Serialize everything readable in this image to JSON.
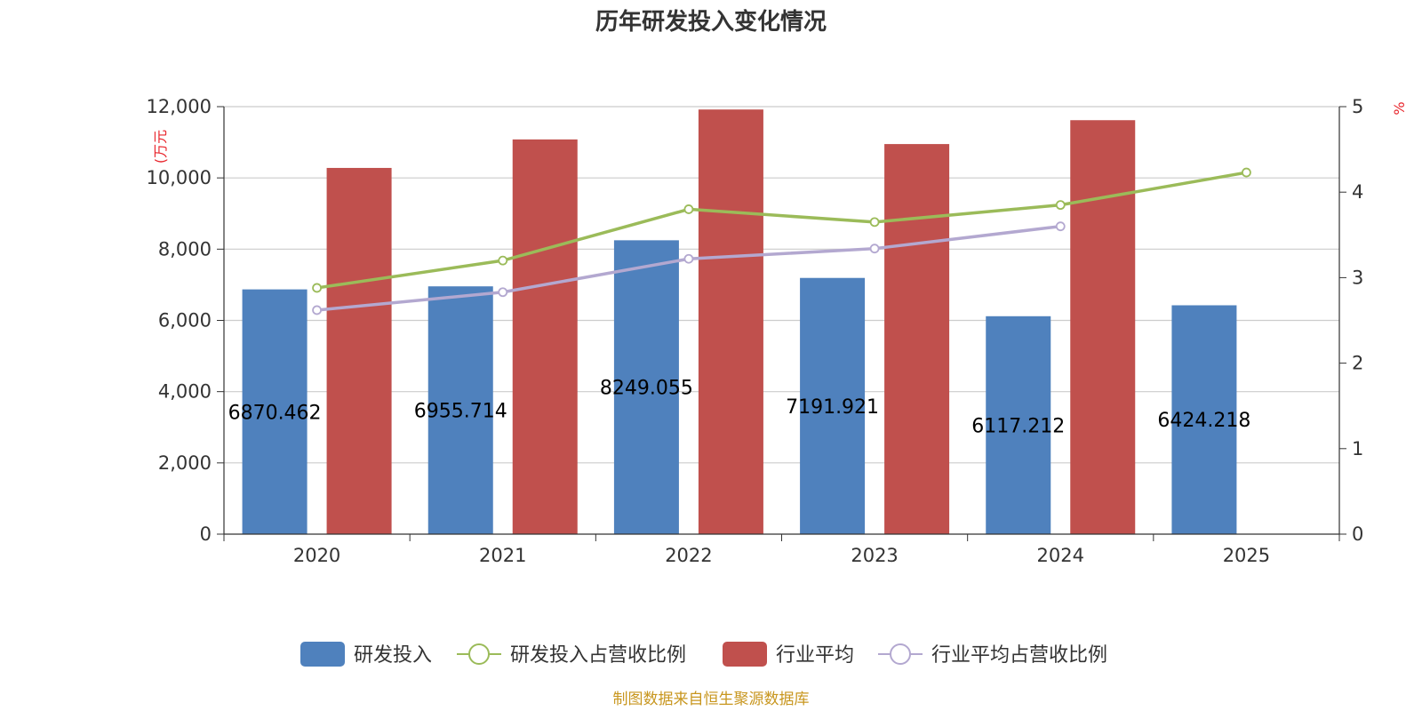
{
  "chart_data": {
    "type": "bar",
    "title": "历年研发投入变化情况",
    "categories": [
      "2020",
      "2021",
      "2022",
      "2023",
      "2024",
      "2025"
    ],
    "left_axis": {
      "unit_label": "(万元",
      "ylim": [
        0,
        12000
      ],
      "ticks": [
        0,
        2000,
        4000,
        6000,
        8000,
        10000,
        12000
      ],
      "tick_labels": [
        "0",
        "2,000",
        "4,000",
        "6,000",
        "8,000",
        "10,000",
        "12,000"
      ]
    },
    "right_axis": {
      "unit_label": "%",
      "ylim": [
        0,
        5
      ],
      "ticks": [
        0,
        1,
        2,
        3,
        4,
        5
      ],
      "tick_labels": [
        "0",
        "1",
        "2",
        "3",
        "4",
        "5"
      ]
    },
    "series": [
      {
        "name": "研发投入",
        "type": "bar",
        "axis": "left",
        "color": "#4f81bd",
        "values": [
          6870.462,
          6955.714,
          8249.055,
          7191.921,
          6117.212,
          6424.218
        ],
        "labels": [
          "6870.462",
          "6955.714",
          "8249.055",
          "7191.921",
          "6117.212",
          "6424.218"
        ]
      },
      {
        "name": "研发投入占营收比例",
        "type": "line",
        "axis": "right",
        "color": "#9bbb59",
        "values": [
          2.88,
          3.2,
          3.8,
          3.65,
          3.85,
          4.23
        ]
      },
      {
        "name": "行业平均",
        "type": "bar",
        "axis": "left",
        "color": "#c0504d",
        "values": [
          10280,
          11080,
          11920,
          10950,
          11620,
          null
        ]
      },
      {
        "name": "行业平均占营收比例",
        "type": "line",
        "axis": "right",
        "color": "#b3a8d0",
        "values": [
          2.62,
          2.83,
          3.22,
          3.34,
          3.6,
          null
        ]
      }
    ],
    "legend_position": "bottom-center",
    "source": "制图数据来自恒生聚源数据库"
  }
}
